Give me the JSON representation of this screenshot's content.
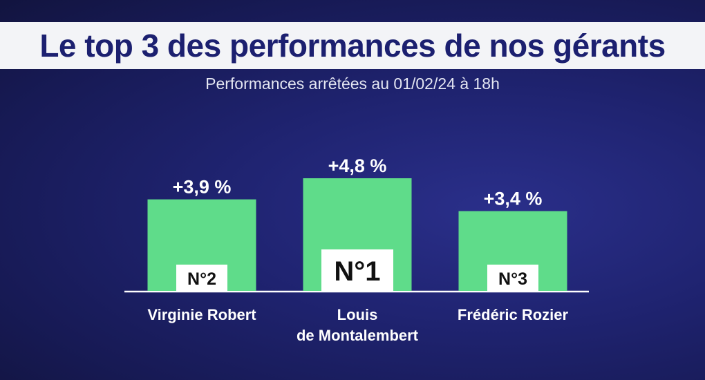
{
  "header": {
    "title": "Le top 3 des performances de nos gérants",
    "subtitle": "Performances arrêtées au 01/02/24 à 18h"
  },
  "colors": {
    "bar": "#5fdc8a",
    "baseline": "#ffffff",
    "badge_bg": "#ffffff",
    "badge_text": "#111111",
    "text": "#ffffff"
  },
  "chart_data": {
    "type": "bar",
    "categories": [
      "Virginie Robert",
      "Louis de Montalembert",
      "Frédéric Rozier"
    ],
    "category_lines": [
      [
        "Virginie Robert"
      ],
      [
        "Louis",
        "de Montalembert"
      ],
      [
        "Frédéric Rozier"
      ]
    ],
    "values": [
      3.9,
      4.8,
      3.4
    ],
    "value_labels": [
      "+3,9 %",
      "+4,8 %",
      "+3,4 %"
    ],
    "ranks": [
      "N°2",
      "N°1",
      "N°3"
    ],
    "title": "Le top 3 des performances de nos gérants",
    "xlabel": "",
    "ylabel": "",
    "ylim": [
      0,
      4.8
    ]
  }
}
